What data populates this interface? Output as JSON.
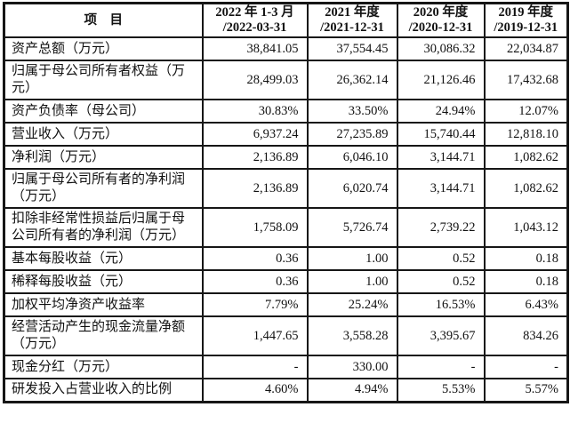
{
  "colors": {
    "background": "#ffffff",
    "border": "#161616",
    "text": "#111111"
  },
  "table": {
    "header": {
      "item_label": "项　目",
      "columns": [
        {
          "line1": "2022 年 1-3 月",
          "line2": "/2022-03-31"
        },
        {
          "line1": "2021 年度",
          "line2": "/2021-12-31"
        },
        {
          "line1": "2020 年度",
          "line2": "/2020-12-31"
        },
        {
          "line1": "2019 年度",
          "line2": "/2019-12-31"
        }
      ]
    },
    "rows": [
      {
        "label": "资产总额（万元）",
        "values": [
          "38,841.05",
          "37,554.45",
          "30,086.32",
          "22,034.87"
        ]
      },
      {
        "label": "归属于母公司所有者权益（万元）",
        "values": [
          "28,499.03",
          "26,362.14",
          "21,126.46",
          "17,432.68"
        ]
      },
      {
        "label": "资产负债率（母公司）",
        "values": [
          "30.83%",
          "33.50%",
          "24.94%",
          "12.07%"
        ]
      },
      {
        "label": "营业收入（万元）",
        "values": [
          "6,937.24",
          "27,235.89",
          "15,740.44",
          "12,818.10"
        ]
      },
      {
        "label": "净利润（万元）",
        "values": [
          "2,136.89",
          "6,046.10",
          "3,144.71",
          "1,082.62"
        ]
      },
      {
        "label": "归属于母公司所有者的净利润（万元）",
        "values": [
          "2,136.89",
          "6,020.74",
          "3,144.71",
          "1,082.62"
        ]
      },
      {
        "label": "扣除非经常性损益后归属于母公司所有者的净利润（万元）",
        "values": [
          "1,758.09",
          "5,726.74",
          "2,739.22",
          "1,043.12"
        ]
      },
      {
        "label": "基本每股收益（元）",
        "values": [
          "0.36",
          "1.00",
          "0.52",
          "0.18"
        ]
      },
      {
        "label": "稀释每股收益（元）",
        "values": [
          "0.36",
          "1.00",
          "0.52",
          "0.18"
        ]
      },
      {
        "label": "加权平均净资产收益率",
        "values": [
          "7.79%",
          "25.24%",
          "16.53%",
          "6.43%"
        ]
      },
      {
        "label": "经营活动产生的现金流量净额（万元）",
        "values": [
          "1,447.65",
          "3,558.28",
          "3,395.67",
          "834.26"
        ]
      },
      {
        "label": "现金分红（万元）",
        "values": [
          "-",
          "330.00",
          "-",
          "-"
        ]
      },
      {
        "label": "研发投入占营业收入的比例",
        "values": [
          "4.60%",
          "4.94%",
          "5.53%",
          "5.57%"
        ]
      }
    ]
  }
}
